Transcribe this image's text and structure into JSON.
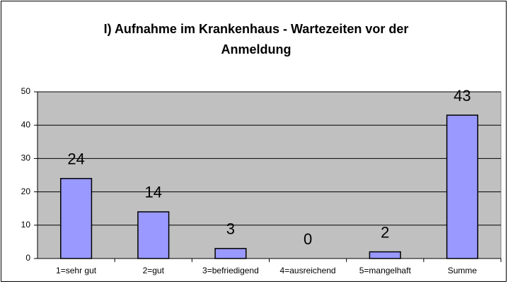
{
  "chart_data": {
    "type": "bar",
    "title": [
      "I) Aufnahme im Krankenhaus - Wartezeiten vor der",
      "Anmeldung"
    ],
    "categories": [
      "1=sehr gut",
      "2=gut",
      "3=befriedigend",
      "4=ausreichend",
      "5=mangelhaft",
      "Summe"
    ],
    "values": [
      24,
      14,
      3,
      0,
      2,
      43
    ],
    "color": "#9999ff",
    "plot_background": "#c0c0c0",
    "ylim": [
      0,
      50
    ],
    "yticks": [
      0,
      10,
      20,
      30,
      40,
      50
    ],
    "grid": true
  }
}
